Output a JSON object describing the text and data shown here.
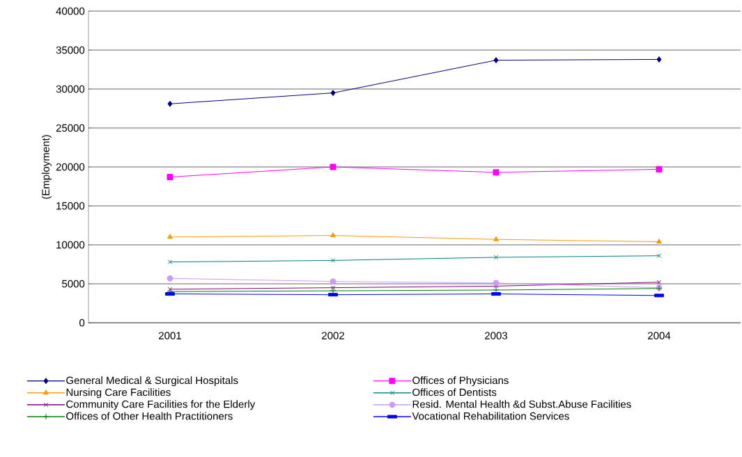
{
  "chart_data": {
    "type": "line",
    "ylabel": "(Employment)",
    "categories": [
      "2001",
      "2002",
      "2003",
      "2004"
    ],
    "ylim": [
      0,
      40000
    ],
    "yticks": [
      0,
      5000,
      10000,
      15000,
      20000,
      25000,
      30000,
      35000,
      40000
    ],
    "grid": "y",
    "legend": "bottom",
    "line_style": "solid",
    "series": [
      {
        "name": "General Medical & Surgical Hospitals",
        "color": "#000080",
        "marker": "diamond",
        "values": [
          28100,
          29500,
          33700,
          33800
        ]
      },
      {
        "name": "Offices of Physicians",
        "color": "#ff00ff",
        "marker": "square",
        "values": [
          18700,
          20000,
          19300,
          19700
        ]
      },
      {
        "name": "Nursing Care Facilities",
        "color": "#ff9900",
        "marker": "triangle",
        "values": [
          11000,
          11200,
          10700,
          10400
        ]
      },
      {
        "name": "Offices of Dentists",
        "color": "#008080",
        "marker": "cross",
        "values": [
          7800,
          8000,
          8400,
          8600
        ]
      },
      {
        "name": "Community Care Facilities for the Elderly",
        "color": "#800080",
        "marker": "cross",
        "values": [
          4300,
          4500,
          4700,
          5200
        ]
      },
      {
        "name": "Resid. Mental Health &d Subst.Abuse Facilities",
        "color": "#cc99ff",
        "marker": "circle",
        "values": [
          5700,
          5300,
          5100,
          4500
        ]
      },
      {
        "name": "Offices of Other Health Practitioners",
        "color": "#008000",
        "marker": "plus",
        "values": [
          4000,
          4100,
          4200,
          4400
        ]
      },
      {
        "name": "Vocational Rehabilitation Services",
        "color": "#0000ff",
        "marker": "square",
        "values": [
          3700,
          3600,
          3700,
          3500
        ]
      }
    ]
  }
}
